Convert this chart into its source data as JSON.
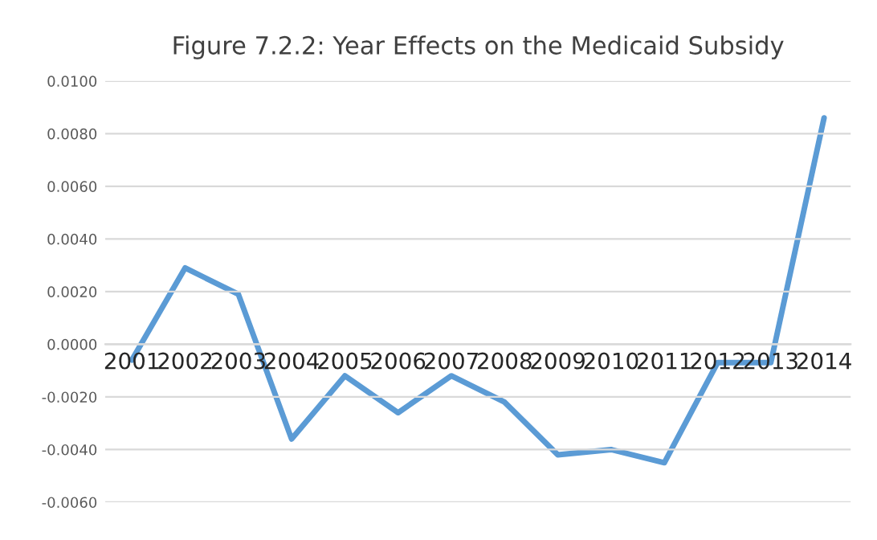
{
  "chart_data": {
    "type": "line",
    "title": "Figure 7.2.2: Year Effects on the Medicaid Subsidy",
    "categories": [
      "2001",
      "2002",
      "2003",
      "2004",
      "2005",
      "2006",
      "2007",
      "2008",
      "2009",
      "2010",
      "2011",
      "2012",
      "2013",
      "2014"
    ],
    "series": [
      {
        "color": "#5b9bd5",
        "values": [
          -0.0006,
          0.0029,
          0.0019,
          -0.0036,
          -0.0012,
          -0.0026,
          -0.0012,
          -0.0022,
          -0.0042,
          -0.004,
          -0.0045,
          -0.0007,
          -0.0007,
          0.0086
        ]
      }
    ],
    "ylim": [
      -0.006,
      0.01
    ],
    "yticks": [
      {
        "value": -0.006,
        "label": "-0.0060"
      },
      {
        "value": -0.004,
        "label": "-0.0040"
      },
      {
        "value": -0.002,
        "label": "-0.0020"
      },
      {
        "value": 0,
        "label": "0.0000"
      },
      {
        "value": 0.002,
        "label": "0.0020"
      },
      {
        "value": 0.004,
        "label": "0.0040"
      },
      {
        "value": 0.006,
        "label": "0.0060"
      },
      {
        "value": 0.008,
        "label": "0.0080"
      },
      {
        "value": 0.01,
        "label": "0.0100"
      }
    ],
    "grid": "y",
    "legend": false,
    "marker": "none",
    "line_style": "solid"
  }
}
